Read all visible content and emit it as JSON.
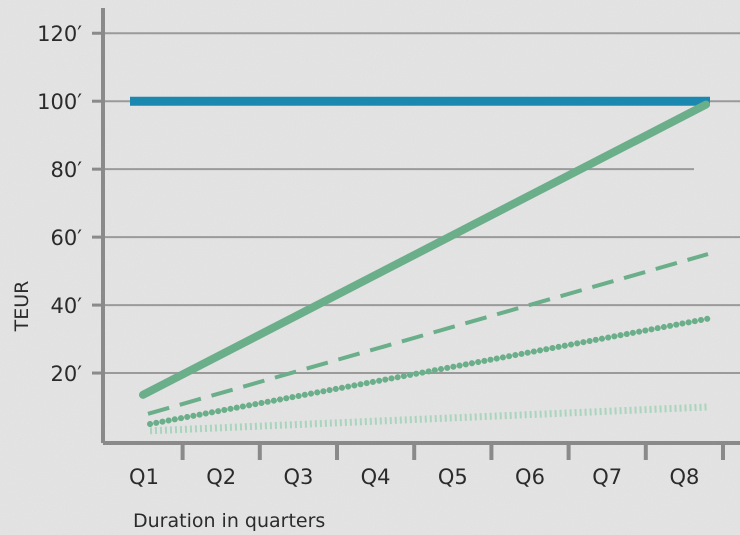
{
  "chart_data": {
    "type": "line",
    "xlabel": "Duration in quarters",
    "ylabel": "TEUR",
    "categories": [
      "Q1",
      "Q2",
      "Q3",
      "Q4",
      "Q5",
      "Q6",
      "Q7",
      "Q8"
    ],
    "yticks": [
      "20′",
      "40′",
      "60′",
      "80′",
      "100′",
      "120′"
    ],
    "ylim": [
      0,
      120
    ],
    "grid": true,
    "series": [
      {
        "style": "solid-thick",
        "color": "#1b88b0",
        "values": [
          100,
          100,
          100,
          100,
          100,
          100,
          100,
          100
        ]
      },
      {
        "style": "solid",
        "color": "#6aae8a",
        "values": [
          13,
          25,
          37,
          49,
          61,
          74,
          86,
          99
        ]
      },
      {
        "style": "dashed",
        "color": "#6aae8a",
        "values": [
          8,
          15,
          21,
          28,
          35,
          42,
          48,
          55
        ]
      },
      {
        "style": "dotted",
        "color": "#6aae8a",
        "values": [
          5,
          9,
          14,
          18,
          22,
          27,
          31,
          36
        ]
      },
      {
        "style": "hatched",
        "color": "#a9d4bd",
        "values": [
          3,
          4,
          5,
          6,
          7,
          8,
          9,
          10
        ]
      }
    ]
  }
}
